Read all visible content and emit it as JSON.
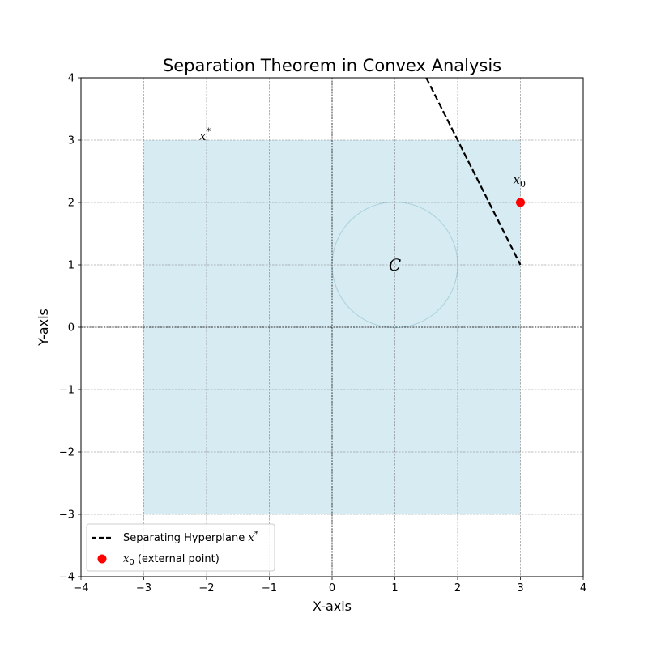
{
  "chart_data": {
    "type": "line",
    "title": "Separation Theorem in Convex Analysis",
    "xlabel": "X-axis",
    "ylabel": "Y-axis",
    "xlim": [
      -4,
      4
    ],
    "ylim": [
      -4,
      4
    ],
    "xticks": [
      -4,
      -3,
      -2,
      -1,
      0,
      1,
      2,
      3,
      4
    ],
    "yticks": [
      -4,
      -3,
      -2,
      -1,
      0,
      1,
      2,
      3,
      4
    ],
    "xtick_labels": [
      "−4",
      "−3",
      "−2",
      "−1",
      "0",
      "1",
      "2",
      "3",
      "4"
    ],
    "ytick_labels": [
      "−4",
      "−3",
      "−2",
      "−1",
      "0",
      "1",
      "2",
      "3",
      "4"
    ],
    "grid": true,
    "legend_position": "lower-left",
    "convex_set": {
      "label": "C",
      "region_x": [
        -3,
        3
      ],
      "region_y": [
        -3,
        3
      ],
      "circle_center": [
        1,
        1
      ],
      "circle_radius": 1,
      "color": "#add8e6"
    },
    "series": [
      {
        "name": "Separating Hyperplane x*",
        "legend_text": "Separating Hyperplane ",
        "legend_math": "x",
        "legend_sup": "*",
        "style": "dashed",
        "color": "#000000",
        "x": [
          1.5,
          3
        ],
        "y": [
          4,
          1
        ]
      },
      {
        "name": "x0 (external point)",
        "legend_math": "x",
        "legend_sub": "0",
        "legend_text": " (external point)",
        "style": "marker",
        "color": "#ff0000",
        "x": [
          3
        ],
        "y": [
          2
        ]
      }
    ],
    "annotations": [
      {
        "text": "x",
        "sup": "*",
        "x": -2,
        "y": 3
      },
      {
        "text": "x",
        "sub": "0",
        "x": 3,
        "y": 2.3
      },
      {
        "text": "C",
        "x": 1,
        "y": 1
      }
    ]
  }
}
